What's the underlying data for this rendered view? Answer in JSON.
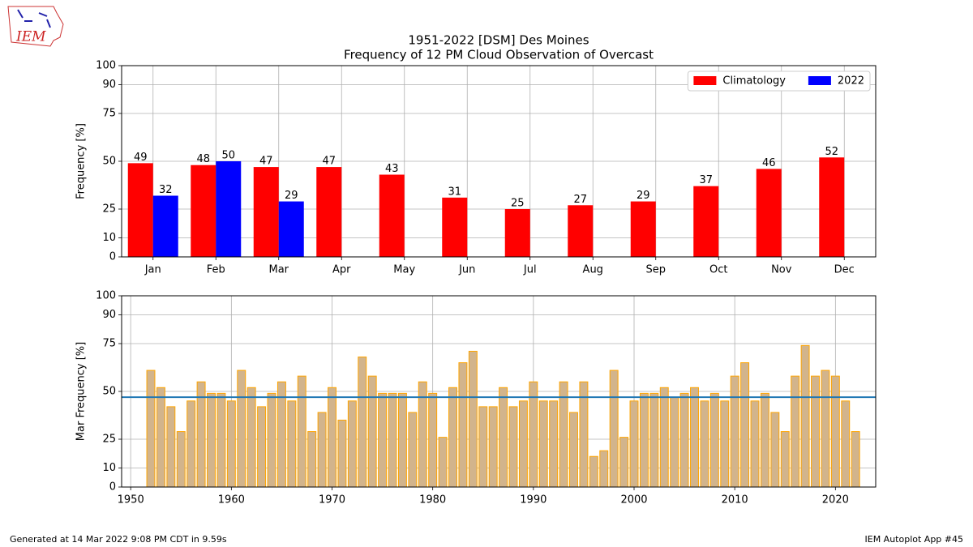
{
  "logo_text": "IEM",
  "footer": {
    "left": "Generated at 14 Mar 2022 9:08 PM CDT in 9.59s",
    "right": "IEM Autoplot App #45"
  },
  "chart_data": [
    {
      "type": "bar",
      "title": "1951-2022 [DSM] Des Moines",
      "subtitle": "Frequency of 12 PM Cloud Observation of Overcast",
      "ylabel": "Frequency [%]",
      "categories": [
        "Jan",
        "Feb",
        "Mar",
        "Apr",
        "May",
        "Jun",
        "Jul",
        "Aug",
        "Sep",
        "Oct",
        "Nov",
        "Dec"
      ],
      "series": [
        {
          "name": "Climatology",
          "color": "red",
          "values": [
            49,
            48,
            47,
            47,
            43,
            31,
            25,
            27,
            29,
            37,
            46,
            52
          ]
        },
        {
          "name": "2022",
          "color": "blue",
          "values": [
            32,
            50,
            29,
            null,
            null,
            null,
            null,
            null,
            null,
            null,
            null,
            null
          ]
        }
      ],
      "ylim": [
        0,
        100
      ],
      "yticks": [
        0,
        10,
        25,
        50,
        75,
        90,
        100
      ],
      "grid": true,
      "legend": "upper right"
    },
    {
      "type": "bar",
      "ylabel": "Mar Frequency [%]",
      "x": [
        1952,
        1953,
        1954,
        1955,
        1956,
        1957,
        1958,
        1959,
        1960,
        1961,
        1962,
        1963,
        1964,
        1965,
        1966,
        1967,
        1968,
        1969,
        1970,
        1971,
        1972,
        1973,
        1974,
        1975,
        1976,
        1977,
        1978,
        1979,
        1980,
        1981,
        1982,
        1983,
        1984,
        1985,
        1986,
        1987,
        1988,
        1989,
        1990,
        1991,
        1992,
        1993,
        1994,
        1995,
        1996,
        1997,
        1998,
        1999,
        2000,
        2001,
        2002,
        2003,
        2004,
        2005,
        2006,
        2007,
        2008,
        2009,
        2010,
        2011,
        2012,
        2013,
        2014,
        2015,
        2016,
        2017,
        2018,
        2019,
        2020,
        2021,
        2022
      ],
      "values": [
        61,
        52,
        42,
        29,
        45,
        55,
        49,
        49,
        45,
        61,
        52,
        42,
        49,
        55,
        45,
        58,
        29,
        39,
        52,
        35,
        45,
        68,
        58,
        49,
        49,
        49,
        39,
        55,
        49,
        26,
        52,
        65,
        71,
        42,
        42,
        52,
        42,
        45,
        55,
        45,
        45,
        55,
        39,
        55,
        16,
        19,
        61,
        26,
        45,
        49,
        49,
        52,
        47,
        49,
        52,
        45,
        49,
        45,
        58,
        65,
        45,
        49,
        39,
        29,
        58,
        74,
        58,
        61,
        58,
        45,
        29
      ],
      "color": "tan",
      "edgecolor": "orange",
      "xlim": [
        1949.1,
        2024.0
      ],
      "xticks": [
        1950,
        1960,
        1970,
        1980,
        1990,
        2000,
        2010,
        2020
      ],
      "ylim": [
        0,
        100
      ],
      "yticks": [
        0,
        10,
        25,
        50,
        75,
        90,
        100
      ],
      "grid": true,
      "hline": {
        "value": 47,
        "color": "#1f77b4"
      }
    }
  ]
}
